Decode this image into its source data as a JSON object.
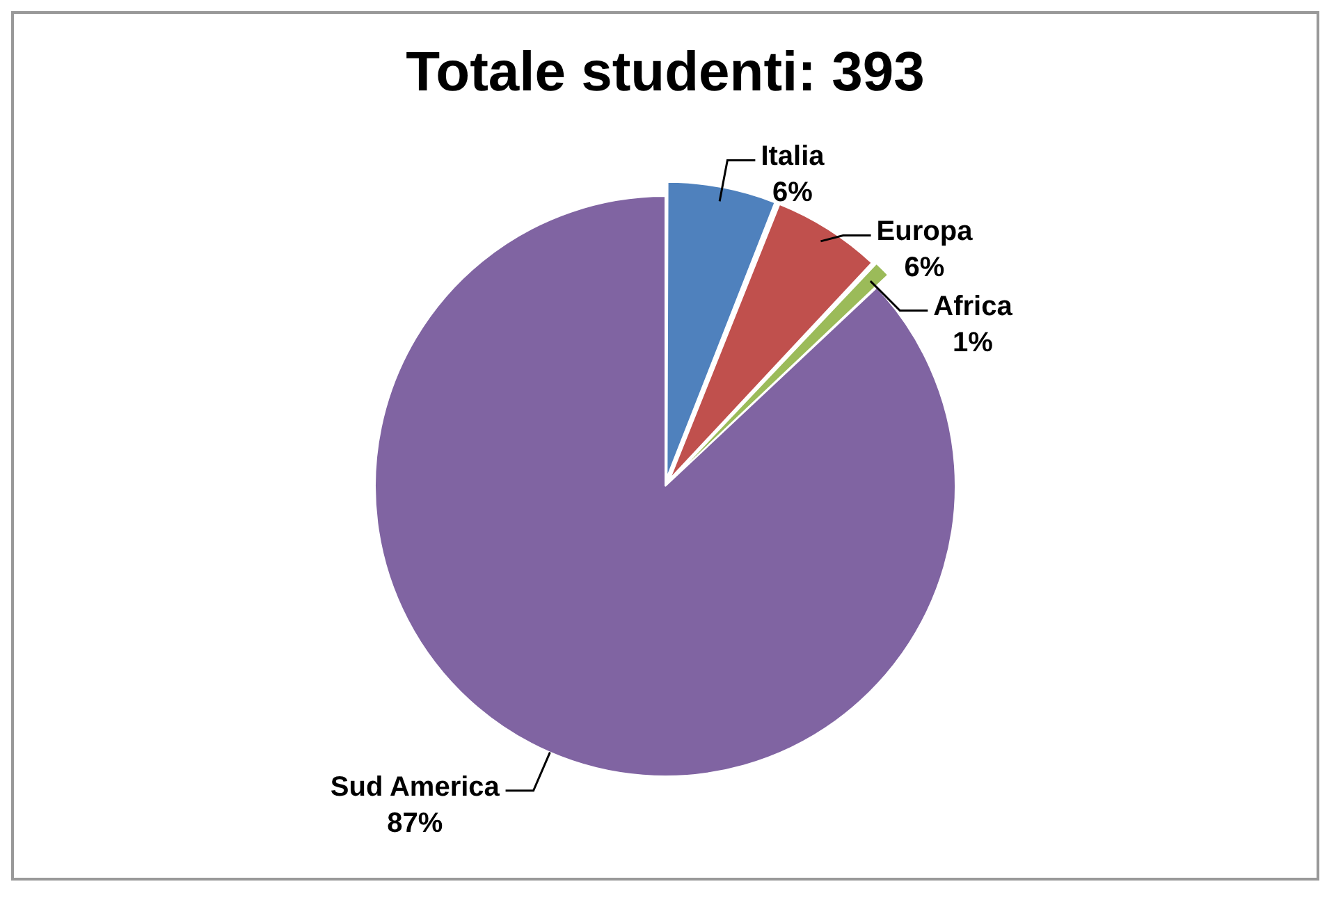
{
  "chart_data": {
    "type": "pie",
    "title": "Totale studenti: 393",
    "categories": [
      "Italia",
      "Europa",
      "Africa",
      "Sud America"
    ],
    "values": [
      6,
      6,
      1,
      87
    ],
    "colors": [
      "#4f81bd",
      "#c0504d",
      "#9bbb59",
      "#8064a2"
    ],
    "value_labels": [
      "6%",
      "6%",
      "1%",
      "87%"
    ],
    "legend": false
  }
}
